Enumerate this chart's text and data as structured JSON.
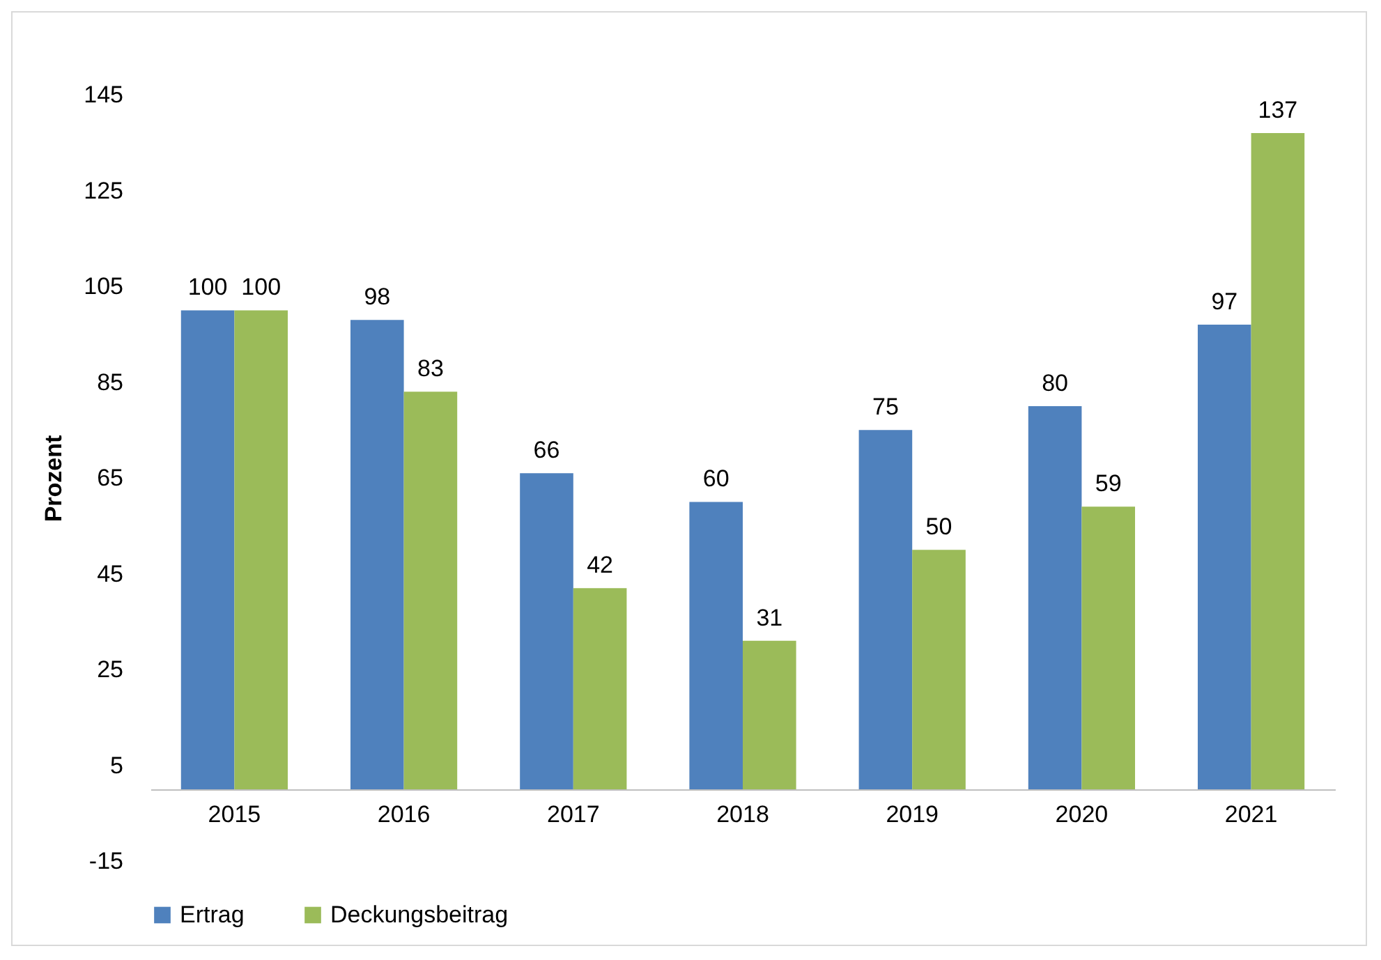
{
  "chart_data": {
    "type": "bar",
    "ylabel": "Prozent",
    "categories": [
      "2015",
      "2016",
      "2017",
      "2018",
      "2019",
      "2020",
      "2021"
    ],
    "series": [
      {
        "name": "Ertrag",
        "color": "#4f81bd",
        "values": [
          100,
          98,
          66,
          60,
          75,
          80,
          97
        ]
      },
      {
        "name": "Deckungsbeitrag",
        "color": "#9bbb59",
        "values": [
          100,
          83,
          42,
          31,
          50,
          59,
          137
        ]
      }
    ],
    "ylim": [
      -15,
      145
    ],
    "yticks": [
      -15,
      5,
      25,
      45,
      65,
      85,
      105,
      125,
      145
    ],
    "grid": false,
    "legend": "bottom",
    "data_labels": true
  }
}
